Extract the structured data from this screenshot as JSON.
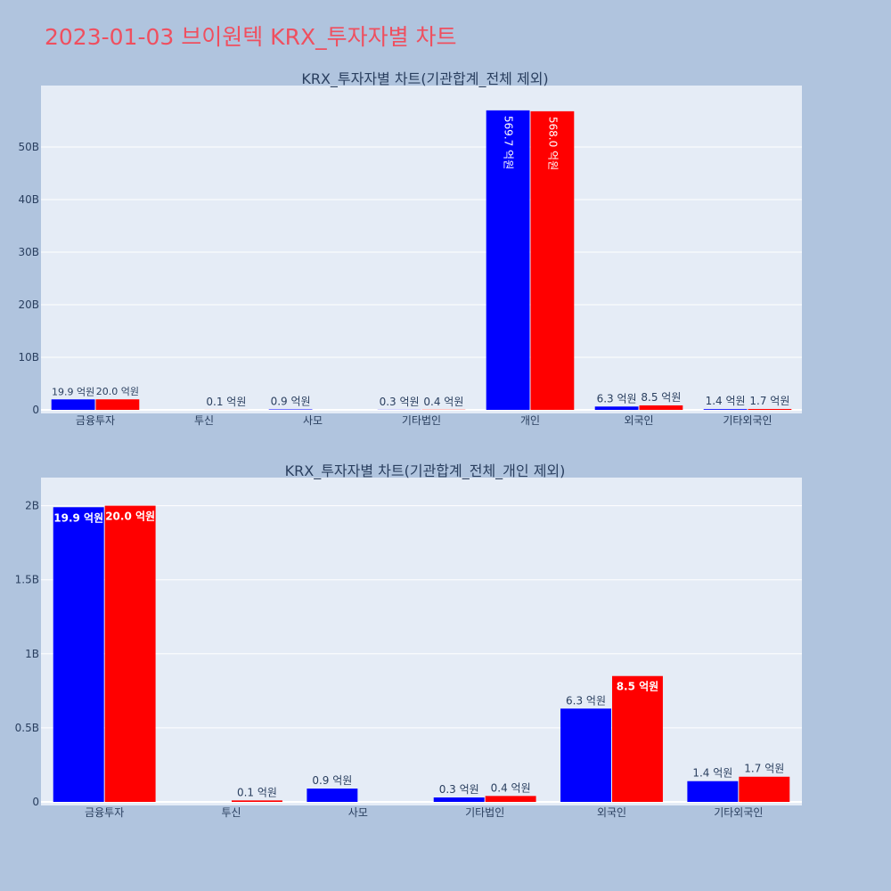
{
  "page": {
    "title": "2023-01-03 브이원텍 KRX_투자자별 차트"
  },
  "colors": {
    "buy": "#0000ff",
    "sell": "#ff0000",
    "plot_bg": "#e5ecf6",
    "page_bg": "#b0c4de",
    "title": "#ef4f5f"
  },
  "chart_data": [
    {
      "type": "bar",
      "title": "KRX_투자자별 차트(기관합계_전체 제외)",
      "categories": [
        "금융투자",
        "투신",
        "사모",
        "기타법인",
        "개인",
        "외국인",
        "기타외국인"
      ],
      "series": [
        {
          "values": [
            1990000000,
            0,
            90000000,
            30000000,
            56970000000,
            630000000,
            140000000
          ],
          "labels": [
            "19.9 억원",
            "",
            "0.9 억원",
            "0.3 억원",
            "569.7 억원",
            "6.3 억원",
            "1.4 억원"
          ]
        },
        {
          "values": [
            2000000000,
            10000000,
            0,
            40000000,
            56800000000,
            850000000,
            170000000
          ],
          "labels": [
            "20.0 억원",
            "0.1 억원",
            "",
            "0.4 억원",
            "568.0 억원",
            "8.5 억원",
            "1.7 억원"
          ]
        }
      ],
      "yticks": [
        "0",
        "10B",
        "20B",
        "30B",
        "40B",
        "50B"
      ],
      "ytick_values": [
        0,
        10000000000,
        20000000000,
        30000000000,
        40000000000,
        50000000000
      ],
      "ylim": [
        0,
        60000000000
      ],
      "grid": true
    },
    {
      "type": "bar",
      "title": "KRX_투자자별 차트(기관합계_전체_개인 제외)",
      "categories": [
        "금융투자",
        "투신",
        "사모",
        "기타법인",
        "외국인",
        "기타외국인"
      ],
      "series": [
        {
          "values": [
            1990000000,
            0,
            90000000,
            30000000,
            630000000,
            140000000
          ],
          "labels": [
            "19.9 억원",
            "",
            "0.9 억원",
            "0.3 억원",
            "6.3 억원",
            "1.4 억원"
          ]
        },
        {
          "values": [
            2000000000,
            10000000,
            0,
            40000000,
            850000000,
            170000000
          ],
          "labels": [
            "20.0 억원",
            "0.1 억원",
            "",
            "0.4 억원",
            "8.5 억원",
            "1.7 억원"
          ]
        }
      ],
      "yticks": [
        "0",
        "0.5B",
        "1B",
        "1.5B",
        "2B"
      ],
      "ytick_values": [
        0,
        500000000,
        1000000000,
        1500000000,
        2000000000
      ],
      "ylim": [
        0,
        2130000000
      ],
      "grid": true
    }
  ]
}
